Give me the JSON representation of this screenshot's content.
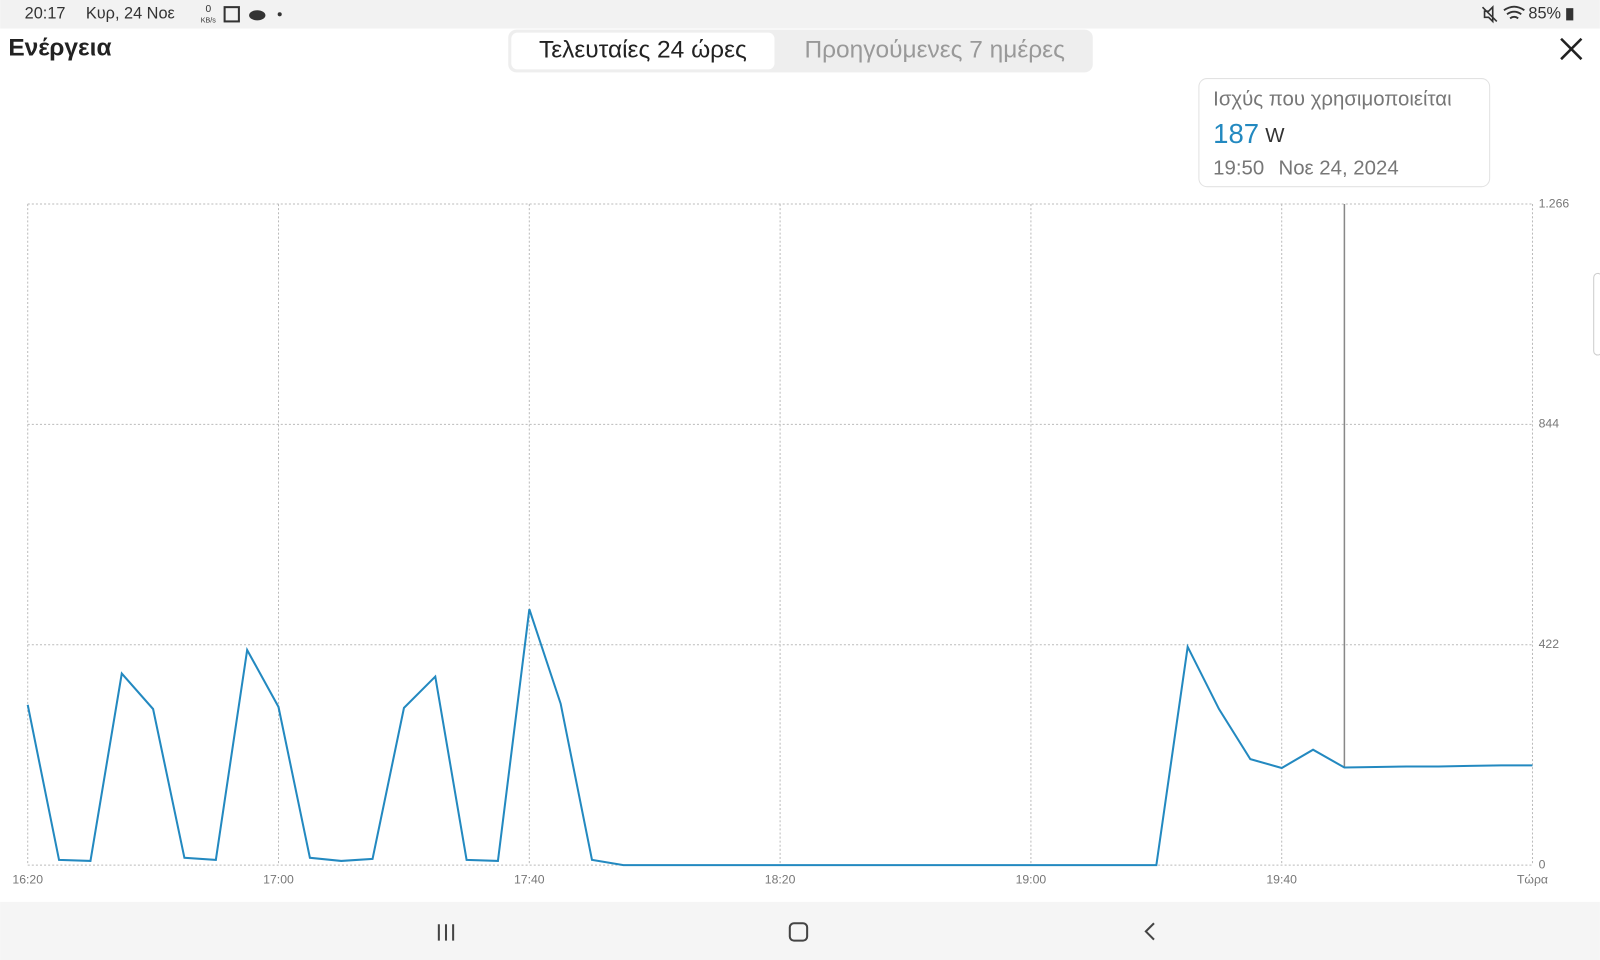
{
  "status_bar": {
    "time": "20:17",
    "date": "Κυρ, 24 Νοε",
    "network_speed": "0",
    "network_unit": "KB/s",
    "battery": "85%"
  },
  "header": {
    "title": "Ενέργεια",
    "tabs": [
      "Τελευταίες 24 ώρες",
      "Προηγούμενες 7 ημέρες"
    ]
  },
  "tooltip": {
    "title": "Ισχύς που χρησιμοποιείται",
    "unit": "W",
    "time": "19:50",
    "date": "Νοε 24, 2024"
  },
  "chart_data": {
    "type": "line",
    "color": "#2389c0",
    "grid": true,
    "categories": [
      "16:20",
      null,
      null,
      null,
      null,
      null,
      null,
      null,
      "17:00",
      null,
      null,
      null,
      null,
      null,
      null,
      null,
      "17:40",
      null,
      null,
      null,
      null,
      null,
      null,
      null,
      "18:20",
      null,
      null,
      null,
      null,
      null,
      null,
      null,
      "19:00",
      null,
      null,
      null,
      null,
      null,
      null,
      null,
      "19:40",
      null,
      null,
      null,
      null,
      null,
      null,
      null,
      "Τώρα"
    ],
    "values": [
      307,
      10,
      8,
      367,
      299,
      14,
      10,
      412,
      303,
      14,
      8,
      12,
      301,
      361,
      10,
      8,
      490,
      309,
      10,
      0,
      0,
      0,
      0,
      0,
      0,
      0,
      0,
      0,
      0,
      0,
      0,
      0,
      0,
      0,
      0,
      0,
      0,
      418,
      299,
      203,
      186,
      221,
      187,
      188,
      189,
      189,
      190,
      191,
      191
    ],
    "ylim": [
      0,
      1266
    ],
    "yticks": [
      0,
      422,
      844,
      {
        "value": 1266,
        "label": "1.266"
      }
    ]
  }
}
